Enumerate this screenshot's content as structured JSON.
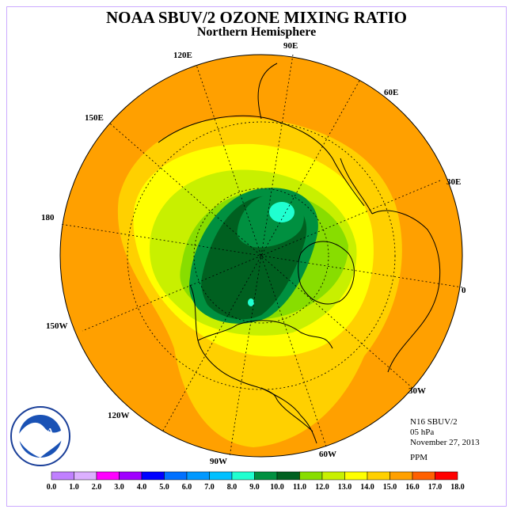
{
  "title": "NOAA SBUV/2 OZONE MIXING RATIO",
  "subtitle": "Northern Hemisphere",
  "longitude_labels": [
    "90E",
    "60E",
    "30E",
    "0",
    "30W",
    "60W",
    "90W",
    "120W",
    "150W",
    "180",
    "150E",
    "120E"
  ],
  "info": {
    "instrument": "N16 SBUV/2",
    "level": "05 hPa",
    "date": "November 27, 2013",
    "units": "PPM"
  },
  "legend": {
    "ticks": [
      "0.0",
      "1.0",
      "2.0",
      "3.0",
      "4.0",
      "5.0",
      "6.0",
      "7.0",
      "8.0",
      "9.0",
      "10.0",
      "11.0",
      "12.0",
      "13.0",
      "14.0",
      "15.0",
      "16.0",
      "17.0",
      "18.0"
    ],
    "colors": [
      "#c080ff",
      "#dcb0ff",
      "#ff00ff",
      "#a000ff",
      "#0000ff",
      "#0070ff",
      "#0098ff",
      "#00c0ff",
      "#20ffd0",
      "#009040",
      "#006020",
      "#88dd00",
      "#c8f000",
      "#ffff00",
      "#ffd000",
      "#ffa000",
      "#ff6000",
      "#ff0000",
      "#a05030"
    ]
  },
  "colors": {
    "ocean_orange": "#ffa000",
    "light_orange": "#ffd000",
    "yellow": "#ffff00",
    "yellow_green": "#c8f000",
    "light_green": "#88dd00",
    "mid_green": "#009040",
    "dark_green": "#006020",
    "cyan": "#20ffd0"
  },
  "logo_text": "NOAA"
}
